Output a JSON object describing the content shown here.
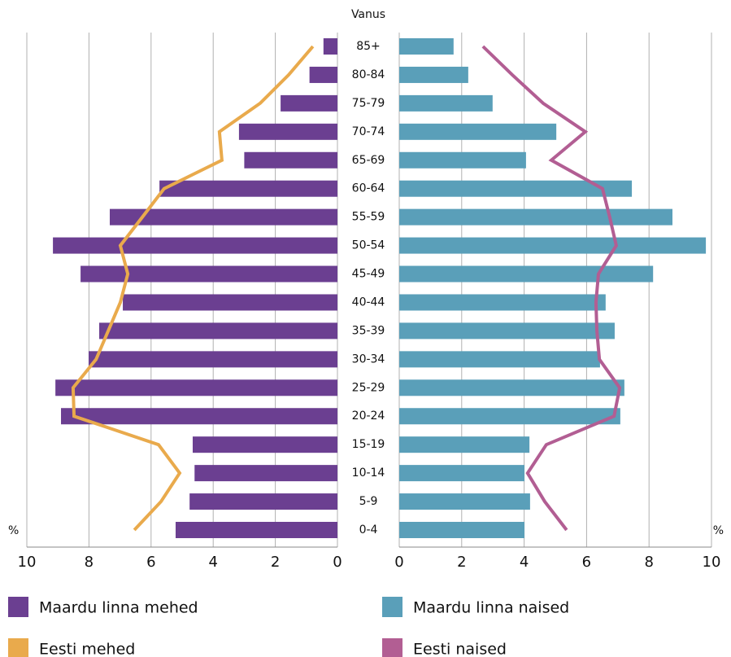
{
  "chart_data": {
    "type": "pyramid",
    "axis_title": "Vanus",
    "unit_label": "%",
    "categories": [
      "85+",
      "80-84",
      "75-79",
      "70-74",
      "65-69",
      "60-64",
      "55-59",
      "50-54",
      "45-49",
      "40-44",
      "35-39",
      "30-34",
      "25-29",
      "20-24",
      "15-19",
      "10-14",
      "5-9",
      "0-4"
    ],
    "xlim": [
      0,
      10
    ],
    "xticks": [
      0,
      2,
      4,
      6,
      8,
      10
    ],
    "grid": true,
    "series": [
      {
        "name": "Maardu linna mehed",
        "color": "#6b3f91",
        "side": "left",
        "mark": "bar",
        "values": [
          0.45,
          0.9,
          1.83,
          3.17,
          3.0,
          5.73,
          7.33,
          9.16,
          8.27,
          6.91,
          7.67,
          8.01,
          9.08,
          8.9,
          4.66,
          4.6,
          4.76,
          5.21
        ]
      },
      {
        "name": "Maardu linna naised",
        "color": "#5a9fb9",
        "side": "right",
        "mark": "bar",
        "values": [
          1.74,
          2.21,
          2.99,
          5.03,
          4.06,
          7.45,
          8.75,
          9.82,
          8.13,
          6.61,
          6.9,
          6.43,
          7.21,
          7.08,
          4.17,
          4.01,
          4.19,
          4.01
        ]
      },
      {
        "name": "Eesti mehed",
        "color": "#e9aa4c",
        "side": "left",
        "mark": "line",
        "values": [
          0.79,
          1.57,
          2.49,
          3.8,
          3.72,
          5.58,
          6.28,
          6.99,
          6.75,
          6.99,
          7.38,
          7.77,
          8.51,
          8.48,
          5.76,
          5.08,
          5.68,
          6.54
        ]
      },
      {
        "name": "Eesti naised",
        "color": "#b25e93",
        "side": "right",
        "mark": "line",
        "values": [
          2.68,
          3.62,
          4.61,
          5.96,
          4.87,
          6.51,
          6.74,
          6.95,
          6.38,
          6.3,
          6.33,
          6.41,
          7.06,
          6.88,
          4.71,
          4.11,
          4.66,
          5.36
        ]
      }
    ]
  }
}
